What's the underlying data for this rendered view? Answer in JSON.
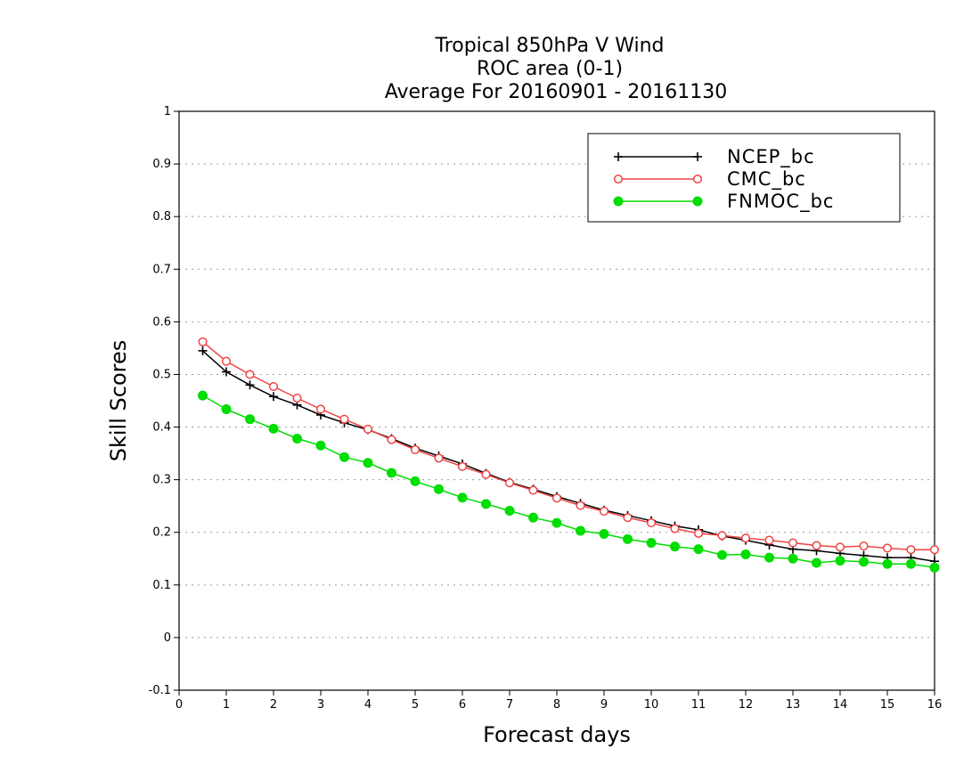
{
  "chart_data": {
    "type": "line",
    "title": [
      "Tropical 850hPa V Wind",
      "ROC area (0-1)",
      "Average For 20160901 - 20161130"
    ],
    "xlabel": "Forecast days",
    "ylabel": "Skill Scores",
    "xlim": [
      0,
      16
    ],
    "ylim": [
      -0.1,
      1
    ],
    "xticks": [
      0,
      1,
      2,
      3,
      4,
      5,
      6,
      7,
      8,
      9,
      10,
      11,
      12,
      13,
      14,
      15,
      16
    ],
    "yticks": [
      -0.1,
      0,
      0.1,
      0.2,
      0.3,
      0.4,
      0.5,
      0.6,
      0.7,
      0.8,
      0.9,
      1
    ],
    "ytick_labels": [
      "-0.1",
      "0",
      "0.1",
      "0.2",
      "0.3",
      "0.4",
      "0.5",
      "0.6",
      "0.7",
      "0.8",
      "0.9",
      "1"
    ],
    "grid": "horizontal dotted",
    "legend_position": "top-right",
    "x": [
      0.5,
      1,
      1.5,
      2,
      2.5,
      3,
      3.5,
      4,
      4.5,
      5,
      5.5,
      6,
      6.5,
      7,
      7.5,
      8,
      8.5,
      9,
      9.5,
      10,
      10.5,
      11,
      11.5,
      12,
      12.5,
      13,
      13.5,
      14,
      14.5,
      15,
      15.5,
      16
    ],
    "series": [
      {
        "name": "NCEP_bc",
        "color": "#000000",
        "marker": "plus",
        "values": [
          0.545,
          0.505,
          0.48,
          0.458,
          0.442,
          0.423,
          0.408,
          0.395,
          0.378,
          0.36,
          0.345,
          0.33,
          0.312,
          0.295,
          0.282,
          0.268,
          0.255,
          0.242,
          0.232,
          0.222,
          0.212,
          0.205,
          0.193,
          0.185,
          0.176,
          0.168,
          0.165,
          0.16,
          0.156,
          0.152,
          0.152,
          0.145
        ]
      },
      {
        "name": "CMC_bc",
        "color": "#ee4444",
        "marker": "open-circle",
        "values": [
          0.562,
          0.525,
          0.5,
          0.477,
          0.455,
          0.434,
          0.415,
          0.396,
          0.376,
          0.357,
          0.341,
          0.325,
          0.31,
          0.294,
          0.28,
          0.265,
          0.251,
          0.24,
          0.228,
          0.218,
          0.207,
          0.198,
          0.194,
          0.189,
          0.185,
          0.18,
          0.175,
          0.172,
          0.174,
          0.17,
          0.167,
          0.167
        ]
      },
      {
        "name": "FNMOC_bc",
        "color": "#00dd00",
        "marker": "filled-circle",
        "values": [
          0.46,
          0.434,
          0.415,
          0.397,
          0.378,
          0.365,
          0.343,
          0.332,
          0.313,
          0.297,
          0.282,
          0.266,
          0.254,
          0.241,
          0.228,
          0.218,
          0.203,
          0.197,
          0.187,
          0.18,
          0.173,
          0.168,
          0.157,
          0.158,
          0.152,
          0.15,
          0.142,
          0.146,
          0.144,
          0.14,
          0.14,
          0.133
        ]
      }
    ]
  }
}
